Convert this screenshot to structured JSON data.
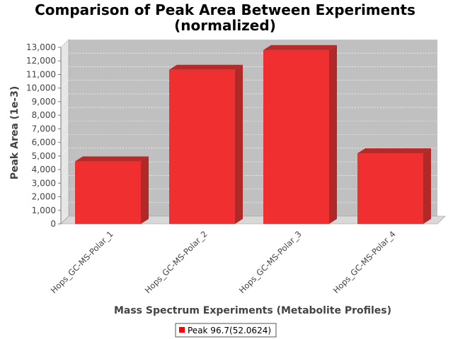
{
  "chart_data": {
    "type": "bar",
    "title": "Comparison of Peak Area Between Experiments",
    "subtitle": "(normalized)",
    "xlabel": "Mass Spectrum Experiments (Metabolite Profiles)",
    "ylabel": "Peak Area (1e-3)",
    "categories": [
      "Hops_GC-MS-Polar_1",
      "Hops_GC-MS-Polar_2",
      "Hops_GC-MS-Polar_3",
      "Hops_GC-MS-Polar_4"
    ],
    "series": [
      {
        "name": "Peak 96.7(52.0624)",
        "values": [
          4600,
          11350,
          12800,
          5200
        ],
        "color": "#f03030"
      }
    ],
    "ylim": [
      0,
      13000
    ],
    "yticks": [
      0,
      1000,
      2000,
      3000,
      4000,
      5000,
      6000,
      7000,
      8000,
      9000,
      10000,
      11000,
      12000,
      13000
    ],
    "ytick_labels": [
      "0",
      "1,000",
      "2,000",
      "3,000",
      "4,000",
      "5,000",
      "6,000",
      "7,000",
      "8,000",
      "9,000",
      "10,000",
      "11,000",
      "12,000",
      "13,000"
    ],
    "grid": true,
    "legend": "bottom-center",
    "plot_background": "#c0c0c0",
    "style": "3d"
  }
}
